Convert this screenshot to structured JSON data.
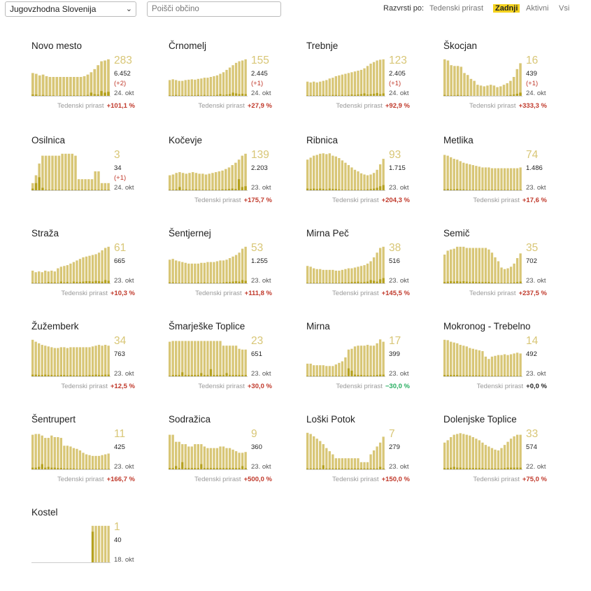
{
  "filter": {
    "region": "Jugovzhodna Slovenija",
    "search_placeholder": "Poišči občino"
  },
  "sort": {
    "label": "Razvrsti po:",
    "options": [
      "Tedenski prirast",
      "Zadnji",
      "Aktivni",
      "Vsi"
    ],
    "active": "Zadnji"
  },
  "growth_label": "Tedenski prirast",
  "colors": {
    "bar_light": "#d8c676",
    "bar_dark": "#b5a11f",
    "active_cases": "#dcc775",
    "increase": "#c0392b",
    "decrease": "#27ae60"
  },
  "chart_data": [
    {
      "type": "bar",
      "title": "Novo mesto",
      "active": "283",
      "total": "6.452",
      "delta": "(+2)",
      "date": "24. okt",
      "growth": "+101,1 %",
      "values": [
        60,
        58,
        54,
        56,
        52,
        50,
        50,
        50,
        50,
        50,
        50,
        50,
        50,
        50,
        50,
        52,
        56,
        62,
        70,
        80,
        90,
        92,
        95
      ],
      "new_cases": [
        5,
        5,
        3,
        4,
        3,
        3,
        3,
        2,
        3,
        3,
        3,
        3,
        3,
        3,
        3,
        3,
        4,
        10,
        6,
        5,
        14,
        10,
        12
      ]
    },
    {
      "type": "bar",
      "title": "Črnomelj",
      "active": "155",
      "total": "2.445",
      "delta": "(+1)",
      "date": "24. okt",
      "growth": "+27,9 %",
      "values": [
        42,
        44,
        42,
        40,
        40,
        42,
        43,
        44,
        43,
        45,
        46,
        48,
        48,
        50,
        52,
        54,
        58,
        62,
        68,
        74,
        80,
        86,
        90,
        92,
        95
      ],
      "new_cases": [
        3,
        3,
        4,
        3,
        3,
        3,
        3,
        3,
        3,
        4,
        3,
        4,
        3,
        3,
        3,
        4,
        6,
        4,
        5,
        6,
        10,
        8,
        6,
        7,
        6
      ]
    },
    {
      "type": "bar",
      "title": "Trebnje",
      "active": "123",
      "total": "2.405",
      "delta": "(+1)",
      "date": "24. okt",
      "growth": "+92,9 %",
      "values": [
        38,
        36,
        38,
        36,
        38,
        40,
        42,
        46,
        48,
        52,
        54,
        56,
        58,
        60,
        62,
        64,
        66,
        68,
        72,
        78,
        84,
        88,
        92,
        94,
        95
      ],
      "new_cases": [
        3,
        3,
        3,
        3,
        3,
        4,
        3,
        3,
        4,
        4,
        3,
        4,
        3,
        4,
        5,
        4,
        5,
        6,
        8,
        5,
        6,
        7,
        9,
        6,
        8
      ]
    },
    {
      "type": "bar",
      "title": "Škocjan",
      "active": "16",
      "total": "439",
      "delta": "(+1)",
      "date": "24. okt",
      "growth": "+333,3 %",
      "values": [
        95,
        92,
        80,
        78,
        78,
        76,
        60,
        55,
        45,
        40,
        30,
        28,
        26,
        28,
        30,
        28,
        24,
        26,
        30,
        34,
        40,
        50,
        70,
        85
      ],
      "new_cases": [
        4,
        3,
        3,
        3,
        4,
        3,
        3,
        3,
        2,
        2,
        2,
        2,
        2,
        2,
        2,
        2,
        2,
        2,
        2,
        3,
        4,
        5,
        7,
        10
      ]
    },
    {
      "type": "bar",
      "title": "Osilnica",
      "active": "3",
      "total": "34",
      "delta": "(+1)",
      "date": "24. okt",
      "growth": "",
      "values": [
        20,
        40,
        70,
        90,
        90,
        90,
        90,
        90,
        90,
        95,
        95,
        95,
        95,
        90,
        30,
        30,
        30,
        30,
        30,
        50,
        50,
        20,
        20,
        20
      ],
      "new_cases": [
        6,
        20,
        35,
        8,
        3,
        3,
        3,
        3,
        3,
        3,
        3,
        3,
        3,
        3,
        3,
        3,
        3,
        3,
        3,
        3,
        3,
        3,
        3,
        3
      ]
    },
    {
      "type": "bar",
      "title": "Kočevje",
      "active": "139",
      "total": "2.203",
      "delta": "",
      "date": "23. okt",
      "growth": "+175,7 %",
      "values": [
        40,
        42,
        46,
        48,
        46,
        44,
        46,
        48,
        46,
        44,
        44,
        42,
        44,
        46,
        48,
        50,
        52,
        56,
        60,
        66,
        72,
        80,
        90,
        95
      ],
      "new_cases": [
        3,
        3,
        4,
        10,
        3,
        4,
        3,
        3,
        4,
        3,
        3,
        3,
        3,
        3,
        3,
        3,
        4,
        4,
        5,
        6,
        5,
        30,
        10,
        12
      ]
    },
    {
      "type": "bar",
      "title": "Ribnica",
      "active": "93",
      "total": "1.715",
      "delta": "",
      "date": "23. okt",
      "growth": "+204,3 %",
      "values": [
        80,
        85,
        90,
        92,
        95,
        96,
        94,
        96,
        90,
        88,
        84,
        78,
        72,
        66,
        60,
        54,
        50,
        45,
        42,
        40,
        42,
        46,
        54,
        68,
        82
      ],
      "new_cases": [
        6,
        5,
        6,
        5,
        6,
        5,
        4,
        6,
        5,
        5,
        4,
        3,
        3,
        3,
        3,
        3,
        3,
        3,
        3,
        4,
        5,
        6,
        8,
        12,
        15
      ]
    },
    {
      "type": "bar",
      "title": "Metlika",
      "active": "74",
      "total": "1.486",
      "delta": "",
      "date": "23. okt",
      "growth": "+17,6 %",
      "values": [
        92,
        90,
        86,
        82,
        80,
        76,
        72,
        70,
        68,
        66,
        64,
        62,
        60,
        60,
        60,
        58,
        58,
        58,
        58,
        58,
        58,
        58,
        58,
        58,
        60
      ],
      "new_cases": [
        4,
        5,
        4,
        4,
        5,
        4,
        4,
        3,
        3,
        3,
        3,
        3,
        3,
        3,
        3,
        3,
        3,
        3,
        3,
        3,
        3,
        3,
        3,
        3,
        3
      ]
    },
    {
      "type": "bar",
      "title": "Straža",
      "active": "61",
      "total": "665",
      "delta": "",
      "date": "23. okt",
      "growth": "+10,3 %",
      "values": [
        34,
        30,
        32,
        30,
        34,
        32,
        34,
        32,
        40,
        44,
        46,
        48,
        52,
        56,
        60,
        64,
        68,
        70,
        72,
        74,
        76,
        80,
        86,
        92,
        95
      ],
      "new_cases": [
        3,
        3,
        3,
        3,
        3,
        5,
        4,
        4,
        3,
        6,
        4,
        5,
        3,
        6,
        5,
        5,
        6,
        7,
        7,
        6,
        8,
        7,
        6,
        10,
        8
      ]
    },
    {
      "type": "bar",
      "title": "Šentjernej",
      "active": "53",
      "total": "1.255",
      "delta": "",
      "date": "23. okt",
      "growth": "+111,8 %",
      "values": [
        62,
        64,
        60,
        58,
        56,
        54,
        52,
        52,
        52,
        52,
        54,
        54,
        56,
        56,
        56,
        58,
        60,
        60,
        62,
        66,
        70,
        74,
        80,
        90,
        95
      ],
      "new_cases": [
        4,
        4,
        3,
        3,
        3,
        3,
        3,
        3,
        3,
        4,
        3,
        4,
        3,
        3,
        3,
        3,
        3,
        4,
        5,
        5,
        6,
        7,
        6,
        10,
        8
      ]
    },
    {
      "type": "bar",
      "title": "Mirna Peč",
      "active": "38",
      "total": "516",
      "delta": "",
      "date": "23. okt",
      "growth": "+145,5 %",
      "values": [
        46,
        44,
        40,
        38,
        38,
        36,
        36,
        36,
        36,
        34,
        34,
        36,
        38,
        40,
        40,
        42,
        44,
        46,
        48,
        52,
        58,
        68,
        80,
        92,
        95
      ],
      "new_cases": [
        3,
        3,
        3,
        3,
        3,
        3,
        3,
        3,
        3,
        3,
        3,
        4,
        4,
        4,
        5,
        5,
        6,
        4,
        5,
        6,
        10,
        8,
        6,
        12,
        15
      ]
    },
    {
      "type": "bar",
      "title": "Semič",
      "active": "35",
      "total": "702",
      "delta": "",
      "date": "23. okt",
      "growth": "+237,5 %",
      "values": [
        75,
        85,
        88,
        90,
        95,
        95,
        95,
        92,
        92,
        92,
        92,
        92,
        92,
        92,
        88,
        80,
        68,
        58,
        42,
        38,
        40,
        44,
        52,
        66,
        78
      ],
      "new_cases": [
        5,
        6,
        7,
        6,
        7,
        6,
        7,
        6,
        5,
        6,
        5,
        5,
        5,
        5,
        5,
        4,
        4,
        3,
        3,
        3,
        3,
        3,
        4,
        5,
        6
      ]
    },
    {
      "type": "bar",
      "title": "Žužemberk",
      "active": "34",
      "total": "763",
      "delta": "",
      "date": "23. okt",
      "growth": "+12,5 %",
      "values": [
        95,
        90,
        86,
        82,
        80,
        78,
        76,
        74,
        74,
        76,
        76,
        74,
        76,
        76,
        76,
        76,
        76,
        76,
        76,
        78,
        80,
        82,
        80,
        82,
        80
      ],
      "new_cases": [
        6,
        6,
        5,
        5,
        6,
        5,
        5,
        4,
        4,
        5,
        5,
        4,
        5,
        4,
        4,
        4,
        4,
        4,
        5,
        5,
        6,
        5,
        5,
        6,
        6
      ]
    },
    {
      "type": "bar",
      "title": "Šmarješke Toplice",
      "active": "23",
      "total": "651",
      "delta": "",
      "date": "23. okt",
      "growth": "+30,0 %",
      "values": [
        90,
        92,
        92,
        92,
        92,
        92,
        92,
        92,
        92,
        92,
        92,
        92,
        92,
        92,
        92,
        92,
        92,
        80,
        80,
        80,
        80,
        80,
        72,
        70,
        70
      ],
      "new_cases": [
        3,
        5,
        5,
        5,
        12,
        5,
        5,
        5,
        5,
        5,
        10,
        5,
        5,
        20,
        5,
        5,
        5,
        5,
        10,
        5,
        5,
        5,
        5,
        5,
        5
      ]
    },
    {
      "type": "bar",
      "title": "Mirna",
      "active": "17",
      "total": "399",
      "delta": "",
      "date": "23. okt",
      "growth": "−30,0 %",
      "values": [
        34,
        34,
        30,
        30,
        30,
        30,
        28,
        28,
        28,
        32,
        36,
        40,
        50,
        70,
        72,
        78,
        80,
        80,
        80,
        82,
        80,
        80,
        86,
        96,
        90
      ],
      "new_cases": [
        3,
        3,
        3,
        3,
        3,
        3,
        3,
        3,
        3,
        3,
        3,
        3,
        3,
        22,
        16,
        6,
        5,
        5,
        4,
        4,
        4,
        4,
        5,
        6,
        6
      ]
    },
    {
      "type": "bar",
      "title": "Mokronog - Trebelno",
      "active": "14",
      "total": "492",
      "delta": "",
      "date": "23. okt",
      "growth": "+0,0 %",
      "values": [
        95,
        94,
        90,
        88,
        86,
        82,
        80,
        78,
        74,
        72,
        70,
        68,
        66,
        52,
        46,
        52,
        54,
        56,
        56,
        58,
        56,
        58,
        60,
        62,
        60
      ],
      "new_cases": [
        5,
        5,
        5,
        5,
        5,
        4,
        4,
        4,
        4,
        4,
        4,
        4,
        4,
        3,
        3,
        3,
        3,
        3,
        3,
        3,
        3,
        3,
        3,
        3,
        3
      ]
    },
    {
      "type": "bar",
      "title": "Šentrupert",
      "active": "11",
      "total": "425",
      "delta": "",
      "date": "23. okt",
      "growth": "+166,7 %",
      "values": [
        90,
        92,
        92,
        88,
        82,
        82,
        88,
        84,
        84,
        82,
        62,
        62,
        60,
        56,
        54,
        50,
        44,
        40,
        38,
        36,
        36,
        36,
        38,
        40,
        42
      ],
      "new_cases": [
        6,
        6,
        8,
        15,
        6,
        8,
        6,
        6,
        5,
        5,
        4,
        4,
        4,
        4,
        3,
        3,
        3,
        3,
        3,
        3,
        3,
        3,
        3,
        3,
        3
      ]
    },
    {
      "type": "bar",
      "title": "Sodražica",
      "active": "9",
      "total": "360",
      "delta": "",
      "date": "23. okt",
      "growth": "+500,0 %",
      "values": [
        90,
        90,
        72,
        72,
        66,
        66,
        60,
        60,
        66,
        66,
        66,
        60,
        56,
        56,
        56,
        56,
        60,
        60,
        56,
        56,
        52,
        48,
        44,
        44,
        46
      ],
      "new_cases": [
        5,
        5,
        10,
        5,
        20,
        5,
        5,
        5,
        5,
        5,
        15,
        5,
        5,
        5,
        5,
        5,
        5,
        5,
        5,
        5,
        5,
        5,
        5,
        10,
        5
      ]
    },
    {
      "type": "bar",
      "title": "Loški Potok",
      "active": "7",
      "total": "279",
      "delta": "",
      "date": "23. okt",
      "growth": "+150,0 %",
      "values": [
        95,
        92,
        86,
        80,
        74,
        66,
        56,
        48,
        40,
        30,
        30,
        30,
        30,
        30,
        30,
        30,
        30,
        20,
        20,
        20,
        40,
        50,
        60,
        70,
        85
      ],
      "new_cases": [
        4,
        4,
        4,
        4,
        4,
        12,
        4,
        4,
        4,
        4,
        4,
        4,
        4,
        4,
        4,
        4,
        4,
        4,
        4,
        4,
        4,
        4,
        4,
        8,
        4
      ]
    },
    {
      "type": "bar",
      "title": "Dolenjske Toplice",
      "active": "33",
      "total": "574",
      "delta": "",
      "date": "22. okt",
      "growth": "+75,0 %",
      "values": [
        70,
        76,
        84,
        90,
        92,
        94,
        92,
        90,
        88,
        84,
        80,
        76,
        70,
        64,
        60,
        56,
        52,
        50,
        56,
        64,
        72,
        80,
        86,
        90,
        90
      ],
      "new_cases": [
        5,
        5,
        6,
        8,
        6,
        6,
        5,
        5,
        5,
        5,
        5,
        5,
        5,
        4,
        4,
        4,
        4,
        4,
        4,
        5,
        6,
        6,
        6,
        6,
        6
      ]
    },
    {
      "type": "bar",
      "title": "Kostel",
      "active": "1",
      "total": "40",
      "delta": "",
      "date": "18. okt",
      "growth": "",
      "values": [
        0,
        0,
        0,
        0,
        0,
        0,
        0,
        0,
        0,
        0,
        0,
        0,
        0,
        0,
        0,
        0,
        0,
        0,
        0,
        95,
        95,
        95,
        95,
        95,
        95
      ],
      "new_cases": [
        0,
        0,
        0,
        0,
        0,
        0,
        0,
        0,
        0,
        0,
        0,
        0,
        0,
        0,
        0,
        0,
        0,
        0,
        0,
        80,
        0,
        0,
        0,
        0,
        0
      ]
    }
  ]
}
